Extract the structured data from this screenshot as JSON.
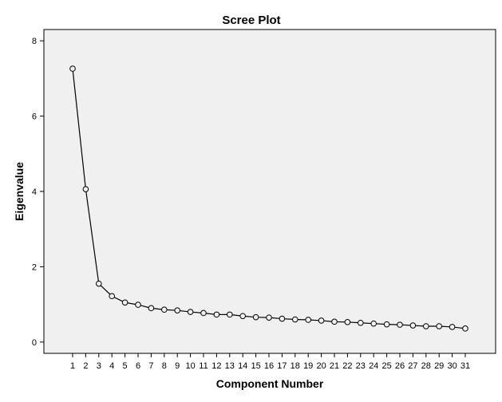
{
  "chart_data": {
    "type": "line",
    "title": "Scree Plot",
    "xlabel": "Component Number",
    "ylabel": "Eigenvalue",
    "ylim": [
      -0.3,
      8.3
    ],
    "yticks": [
      0,
      2,
      4,
      6,
      8
    ],
    "grid": false,
    "legend": "none",
    "marker": "open-circle",
    "colors": {
      "plot_bg": "#f0f0f0",
      "line": "#000000",
      "frame": "#000000"
    },
    "x": [
      1,
      2,
      3,
      4,
      5,
      6,
      7,
      8,
      9,
      10,
      11,
      12,
      13,
      14,
      15,
      16,
      17,
      18,
      19,
      20,
      21,
      22,
      23,
      24,
      25,
      26,
      27,
      28,
      29,
      30,
      31
    ],
    "x_tick_labels": [
      "1",
      "2",
      "3",
      "4",
      "5",
      "6",
      "7",
      "8",
      "9",
      "10",
      "11",
      "12",
      "13",
      "14",
      "15",
      "16",
      "17",
      "18",
      "19",
      "20",
      "21",
      "22",
      "23",
      "24",
      "25",
      "26",
      "27",
      "28",
      "29",
      "30",
      "31"
    ],
    "series": [
      {
        "values": [
          7.26,
          4.06,
          1.55,
          1.22,
          1.05,
          0.99,
          0.9,
          0.86,
          0.84,
          0.8,
          0.77,
          0.73,
          0.73,
          0.69,
          0.66,
          0.65,
          0.62,
          0.6,
          0.59,
          0.57,
          0.54,
          0.53,
          0.51,
          0.49,
          0.47,
          0.46,
          0.44,
          0.42,
          0.42,
          0.4,
          0.36
        ]
      }
    ]
  }
}
